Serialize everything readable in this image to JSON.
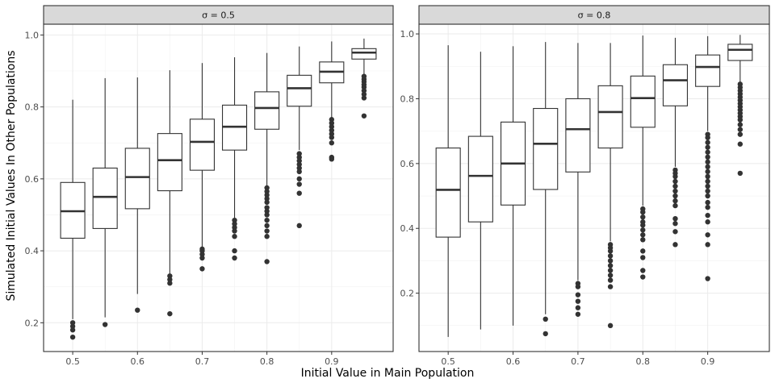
{
  "figure": {
    "xlabel": "Initial Value in Main Population",
    "ylabel": "Simulated Initial Values In Other Populations"
  },
  "chart_data": [
    {
      "type": "boxplot",
      "facet_label": "σ = 0.5",
      "categories": [
        "0.5",
        "0.55",
        "0.6",
        "0.65",
        "0.7",
        "0.75",
        "0.8",
        "0.85",
        "0.9",
        "0.95"
      ],
      "x_ticks": [
        "0.5",
        "0.6",
        "0.7",
        "0.8",
        "0.9"
      ],
      "y_ticks": [
        "0.2",
        "0.4",
        "0.6",
        "0.8",
        "1.0"
      ],
      "ylim": [
        0.12,
        1.03
      ],
      "grid": true,
      "boxes": [
        {
          "x": 0.5,
          "whisker_low": 0.21,
          "q1": 0.435,
          "median": 0.51,
          "q3": 0.59,
          "whisker_high": 0.82,
          "outliers": [
            0.2,
            0.19,
            0.18,
            0.16
          ]
        },
        {
          "x": 0.55,
          "whisker_low": 0.215,
          "q1": 0.462,
          "median": 0.55,
          "q3": 0.63,
          "whisker_high": 0.88,
          "outliers": [
            0.195
          ]
        },
        {
          "x": 0.6,
          "whisker_low": 0.28,
          "q1": 0.517,
          "median": 0.605,
          "q3": 0.685,
          "whisker_high": 0.882,
          "outliers": [
            0.235
          ]
        },
        {
          "x": 0.65,
          "whisker_low": 0.335,
          "q1": 0.567,
          "median": 0.652,
          "q3": 0.726,
          "whisker_high": 0.902,
          "outliers": [
            0.33,
            0.32,
            0.31,
            0.225
          ]
        },
        {
          "x": 0.7,
          "whisker_low": 0.41,
          "q1": 0.624,
          "median": 0.703,
          "q3": 0.766,
          "whisker_high": 0.922,
          "outliers": [
            0.405,
            0.4,
            0.39,
            0.38,
            0.35
          ]
        },
        {
          "x": 0.75,
          "whisker_low": 0.49,
          "q1": 0.68,
          "median": 0.745,
          "q3": 0.805,
          "whisker_high": 0.938,
          "outliers": [
            0.485,
            0.475,
            0.465,
            0.455,
            0.44,
            0.4,
            0.38
          ]
        },
        {
          "x": 0.8,
          "whisker_low": 0.58,
          "q1": 0.738,
          "median": 0.797,
          "q3": 0.842,
          "whisker_high": 0.95,
          "outliers": [
            0.575,
            0.565,
            0.555,
            0.545,
            0.535,
            0.52,
            0.51,
            0.5,
            0.485,
            0.47,
            0.455,
            0.44,
            0.37
          ]
        },
        {
          "x": 0.85,
          "whisker_low": 0.68,
          "q1": 0.802,
          "median": 0.852,
          "q3": 0.888,
          "whisker_high": 0.968,
          "outliers": [
            0.67,
            0.66,
            0.65,
            0.64,
            0.63,
            0.62,
            0.6,
            0.585,
            0.56,
            0.47
          ]
        },
        {
          "x": 0.9,
          "whisker_low": 0.77,
          "q1": 0.867,
          "median": 0.898,
          "q3": 0.925,
          "whisker_high": 0.982,
          "outliers": [
            0.765,
            0.755,
            0.745,
            0.735,
            0.725,
            0.715,
            0.7,
            0.66,
            0.655
          ]
        },
        {
          "x": 0.95,
          "whisker_low": 0.89,
          "q1": 0.933,
          "median": 0.951,
          "q3": 0.962,
          "whisker_high": 0.99,
          "outliers": [
            0.885,
            0.877,
            0.87,
            0.862,
            0.855,
            0.845,
            0.835,
            0.825,
            0.775
          ]
        }
      ]
    },
    {
      "type": "boxplot",
      "facet_label": "σ = 0.8",
      "categories": [
        "0.5",
        "0.55",
        "0.6",
        "0.65",
        "0.7",
        "0.75",
        "0.8",
        "0.85",
        "0.9",
        "0.95"
      ],
      "x_ticks": [
        "0.5",
        "0.6",
        "0.7",
        "0.8",
        "0.9"
      ],
      "y_ticks": [
        "0.2",
        "0.4",
        "0.6",
        "0.8",
        "1.0"
      ],
      "ylim": [
        0.02,
        1.03
      ],
      "grid": true,
      "boxes": [
        {
          "x": 0.5,
          "whisker_low": 0.065,
          "q1": 0.373,
          "median": 0.519,
          "q3": 0.648,
          "whisker_high": 0.965,
          "outliers": []
        },
        {
          "x": 0.55,
          "whisker_low": 0.088,
          "q1": 0.42,
          "median": 0.562,
          "q3": 0.684,
          "whisker_high": 0.945,
          "outliers": []
        },
        {
          "x": 0.6,
          "whisker_low": 0.1,
          "q1": 0.472,
          "median": 0.6,
          "q3": 0.728,
          "whisker_high": 0.962,
          "outliers": []
        },
        {
          "x": 0.65,
          "whisker_low": 0.135,
          "q1": 0.52,
          "median": 0.661,
          "q3": 0.77,
          "whisker_high": 0.975,
          "outliers": [
            0.12,
            0.075
          ]
        },
        {
          "x": 0.7,
          "whisker_low": 0.24,
          "q1": 0.574,
          "median": 0.706,
          "q3": 0.8,
          "whisker_high": 0.972,
          "outliers": [
            0.23,
            0.22,
            0.195,
            0.175,
            0.155,
            0.135
          ]
        },
        {
          "x": 0.75,
          "whisker_low": 0.36,
          "q1": 0.648,
          "median": 0.759,
          "q3": 0.84,
          "whisker_high": 0.972,
          "outliers": [
            0.35,
            0.34,
            0.33,
            0.315,
            0.3,
            0.285,
            0.27,
            0.255,
            0.24,
            0.22,
            0.1
          ]
        },
        {
          "x": 0.8,
          "whisker_low": 0.47,
          "q1": 0.712,
          "median": 0.802,
          "q3": 0.87,
          "whisker_high": 0.995,
          "outliers": [
            0.46,
            0.45,
            0.435,
            0.42,
            0.41,
            0.395,
            0.38,
            0.365,
            0.33,
            0.31,
            0.27,
            0.25
          ]
        },
        {
          "x": 0.85,
          "whisker_low": 0.59,
          "q1": 0.778,
          "median": 0.857,
          "q3": 0.905,
          "whisker_high": 0.988,
          "outliers": [
            0.58,
            0.57,
            0.56,
            0.545,
            0.53,
            0.515,
            0.5,
            0.485,
            0.47,
            0.43,
            0.415,
            0.39,
            0.35
          ]
        },
        {
          "x": 0.9,
          "whisker_low": 0.7,
          "q1": 0.838,
          "median": 0.898,
          "q3": 0.935,
          "whisker_high": 0.993,
          "outliers": [
            0.69,
            0.68,
            0.665,
            0.65,
            0.635,
            0.62,
            0.605,
            0.59,
            0.575,
            0.56,
            0.545,
            0.53,
            0.515,
            0.5,
            0.48,
            0.465,
            0.44,
            0.42,
            0.38,
            0.35,
            0.245
          ]
        },
        {
          "x": 0.95,
          "whisker_low": 0.85,
          "q1": 0.918,
          "median": 0.951,
          "q3": 0.968,
          "whisker_high": 0.997,
          "outliers": [
            0.845,
            0.835,
            0.825,
            0.815,
            0.805,
            0.795,
            0.785,
            0.775,
            0.765,
            0.755,
            0.745,
            0.735,
            0.72,
            0.705,
            0.69,
            0.66,
            0.57
          ]
        }
      ]
    }
  ]
}
